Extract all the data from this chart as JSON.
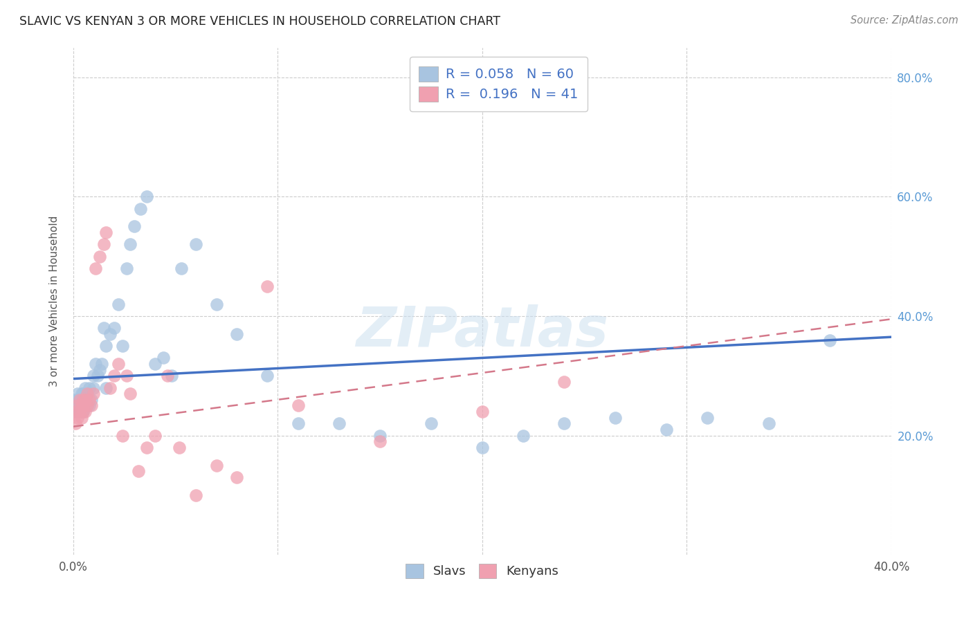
{
  "title": "SLAVIC VS KENYAN 3 OR MORE VEHICLES IN HOUSEHOLD CORRELATION CHART",
  "source": "Source: ZipAtlas.com",
  "ylabel": "3 or more Vehicles in Household",
  "xlim": [
    0.0,
    0.4
  ],
  "ylim": [
    0.0,
    0.85
  ],
  "slavs_color": "#a8c4e0",
  "kenyans_color": "#f0a0b0",
  "slavs_line_color": "#4472c4",
  "kenyans_line_color": "#d4788a",
  "R_slavs": 0.058,
  "N_slavs": 60,
  "R_kenyans": 0.196,
  "N_kenyans": 41,
  "slavs_line_y0": 0.295,
  "slavs_line_y1": 0.365,
  "kenyans_line_y0": 0.215,
  "kenyans_line_y1": 0.395,
  "slavs_x": [
    0.001,
    0.001,
    0.002,
    0.002,
    0.002,
    0.003,
    0.003,
    0.003,
    0.004,
    0.004,
    0.004,
    0.004,
    0.005,
    0.005,
    0.005,
    0.006,
    0.006,
    0.007,
    0.007,
    0.008,
    0.008,
    0.009,
    0.01,
    0.01,
    0.011,
    0.012,
    0.013,
    0.014,
    0.015,
    0.016,
    0.016,
    0.018,
    0.02,
    0.022,
    0.024,
    0.026,
    0.028,
    0.03,
    0.033,
    0.036,
    0.04,
    0.044,
    0.048,
    0.053,
    0.06,
    0.07,
    0.08,
    0.095,
    0.11,
    0.13,
    0.15,
    0.175,
    0.2,
    0.22,
    0.24,
    0.265,
    0.29,
    0.31,
    0.34,
    0.37
  ],
  "slavs_y": [
    0.24,
    0.26,
    0.24,
    0.26,
    0.27,
    0.24,
    0.25,
    0.26,
    0.24,
    0.25,
    0.26,
    0.27,
    0.24,
    0.25,
    0.27,
    0.25,
    0.28,
    0.25,
    0.27,
    0.25,
    0.28,
    0.26,
    0.28,
    0.3,
    0.32,
    0.3,
    0.31,
    0.32,
    0.38,
    0.28,
    0.35,
    0.37,
    0.38,
    0.42,
    0.35,
    0.48,
    0.52,
    0.55,
    0.58,
    0.6,
    0.32,
    0.33,
    0.3,
    0.48,
    0.52,
    0.42,
    0.37,
    0.3,
    0.22,
    0.22,
    0.2,
    0.22,
    0.18,
    0.2,
    0.22,
    0.23,
    0.21,
    0.23,
    0.22,
    0.36
  ],
  "kenyans_x": [
    0.001,
    0.001,
    0.002,
    0.002,
    0.003,
    0.003,
    0.004,
    0.004,
    0.005,
    0.005,
    0.005,
    0.006,
    0.006,
    0.007,
    0.007,
    0.008,
    0.009,
    0.01,
    0.011,
    0.013,
    0.015,
    0.016,
    0.018,
    0.02,
    0.022,
    0.024,
    0.026,
    0.028,
    0.032,
    0.036,
    0.04,
    0.046,
    0.052,
    0.06,
    0.07,
    0.08,
    0.095,
    0.11,
    0.15,
    0.2,
    0.24
  ],
  "kenyans_y": [
    0.22,
    0.24,
    0.23,
    0.25,
    0.24,
    0.26,
    0.23,
    0.25,
    0.24,
    0.25,
    0.26,
    0.24,
    0.26,
    0.25,
    0.27,
    0.26,
    0.25,
    0.27,
    0.48,
    0.5,
    0.52,
    0.54,
    0.28,
    0.3,
    0.32,
    0.2,
    0.3,
    0.27,
    0.14,
    0.18,
    0.2,
    0.3,
    0.18,
    0.1,
    0.15,
    0.13,
    0.45,
    0.25,
    0.19,
    0.24,
    0.29
  ],
  "background_color": "#ffffff",
  "grid_color": "#cccccc"
}
